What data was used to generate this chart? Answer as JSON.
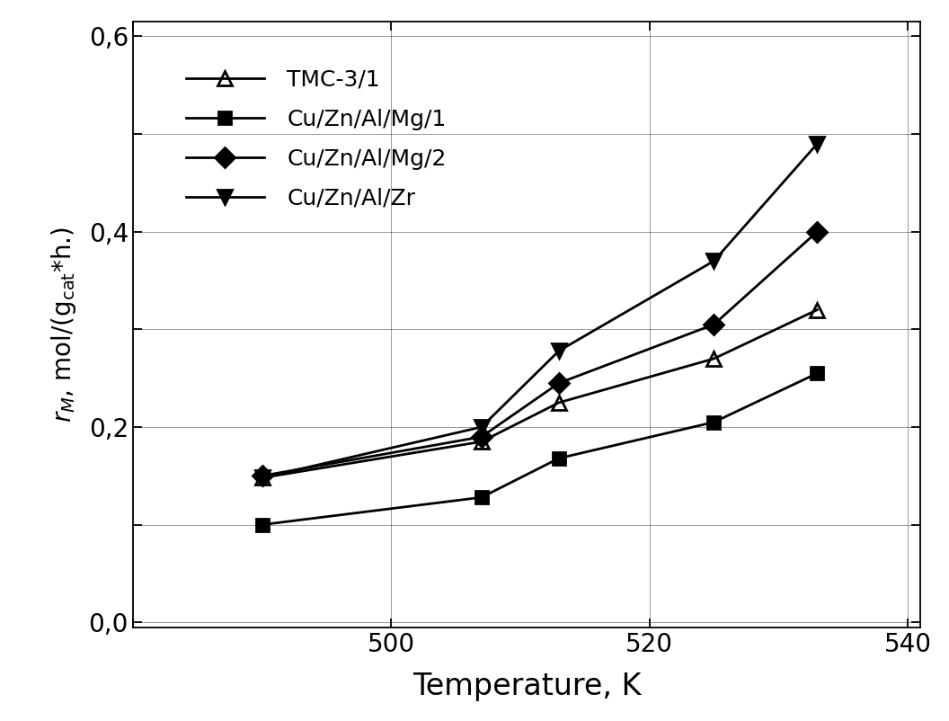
{
  "series": [
    {
      "label": "TMC-3/1",
      "x": [
        490,
        507,
        513,
        525,
        533
      ],
      "y": [
        0.148,
        0.185,
        0.225,
        0.27,
        0.32
      ],
      "marker": "^",
      "fillstyle": "none",
      "color": "#000000",
      "linewidth": 2.0,
      "markersize": 11
    },
    {
      "label": "Cu/Zn/Al/Mg/1",
      "x": [
        490,
        507,
        513,
        525,
        533
      ],
      "y": [
        0.1,
        0.128,
        0.168,
        0.205,
        0.255
      ],
      "marker": "s",
      "fillstyle": "full",
      "color": "#000000",
      "linewidth": 2.0,
      "markersize": 10
    },
    {
      "label": "Cu/Zn/Al/Mg/2",
      "x": [
        490,
        507,
        513,
        525,
        533
      ],
      "y": [
        0.15,
        0.19,
        0.245,
        0.305,
        0.4
      ],
      "marker": "D",
      "fillstyle": "full",
      "color": "#000000",
      "linewidth": 2.0,
      "markersize": 11
    },
    {
      "label": "Cu/Zn/Al/Zr",
      "x": [
        490,
        507,
        513,
        525,
        533
      ],
      "y": [
        0.148,
        0.2,
        0.278,
        0.37,
        0.49
      ],
      "marker": "v",
      "fillstyle": "full",
      "color": "#000000",
      "linewidth": 2.0,
      "markersize": 12
    }
  ],
  "xlabel": "Temperature, K",
  "xlim": [
    482,
    541
  ],
  "ylim": [
    -0.005,
    0.615
  ],
  "major_yticks": [
    0.0,
    0.1,
    0.2,
    0.3,
    0.4,
    0.5,
    0.6
  ],
  "labeled_yticks": [
    0.0,
    0.2,
    0.4,
    0.6
  ],
  "ytick_labels": [
    "0,0",
    "0,2",
    "0,4",
    "0,6"
  ],
  "xticks": [
    480,
    500,
    520,
    540
  ],
  "xtick_labels": [
    "",
    "500",
    "520",
    "540"
  ],
  "background_color": "#ffffff",
  "legend_fontsize": 18,
  "xlabel_fontsize": 24,
  "ylabel_fontsize": 20,
  "tick_fontsize": 20
}
